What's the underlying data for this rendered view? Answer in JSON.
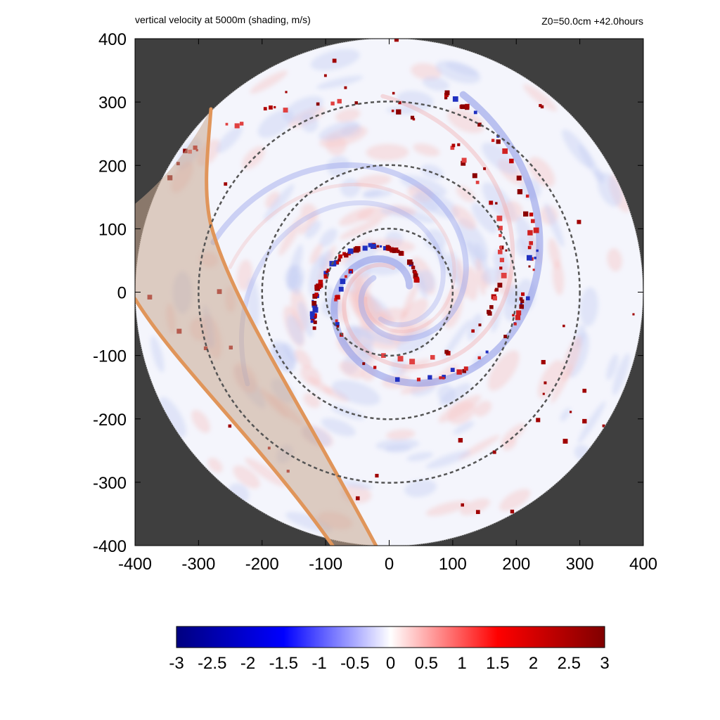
{
  "chart_data": {
    "type": "heatmap",
    "title": "vertical velocity at 5000m (shading, m/s)",
    "subtitle": "Z0=50.0cm  +42.0hours",
    "xlabel": "",
    "ylabel": "",
    "xlim": [
      -400,
      400
    ],
    "ylim": [
      -400,
      400
    ],
    "x_ticks": [
      "-400",
      "-300",
      "-200",
      "-100",
      "0",
      "100",
      "200",
      "300",
      "400"
    ],
    "y_ticks": [
      "400",
      "300",
      "200",
      "100",
      "0",
      "-100",
      "-200",
      "-300",
      "-400"
    ],
    "domain_radius": 400,
    "range_rings_radius": [
      100,
      200,
      300
    ],
    "colorbar": {
      "range": [
        -3,
        3
      ],
      "ticks": [
        "-3",
        "-2.5",
        "-2",
        "-1.5",
        "-1",
        "-0.5",
        "0",
        "0.5",
        "1",
        "1.5",
        "2",
        "2.5",
        "3"
      ],
      "colors": [
        "#000080",
        "#0000ff",
        "#ffffff",
        "#ff0000",
        "#800000"
      ]
    },
    "background_color": "#3f3f3f",
    "band_color": "#e0955a",
    "band_fill": "#c9a88f"
  }
}
